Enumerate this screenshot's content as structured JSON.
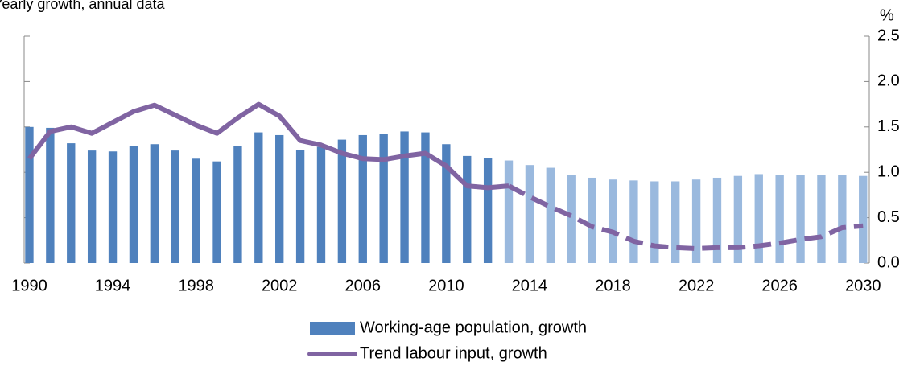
{
  "chart_data": {
    "type": "bar_line",
    "subtitle": "Yearly growth, annual data",
    "y_unit": "%",
    "x": [
      1990,
      1991,
      1992,
      1993,
      1994,
      1995,
      1996,
      1997,
      1998,
      1999,
      2000,
      2001,
      2002,
      2003,
      2004,
      2005,
      2006,
      2007,
      2008,
      2009,
      2010,
      2011,
      2012,
      2013,
      2014,
      2015,
      2016,
      2017,
      2018,
      2019,
      2020,
      2021,
      2022,
      2023,
      2024,
      2025,
      2026,
      2027,
      2028,
      2029,
      2030
    ],
    "xlim": [
      1989.75,
      2030.3
    ],
    "xticks": [
      1990,
      1994,
      1998,
      2002,
      2006,
      2010,
      2014,
      2018,
      2022,
      2026,
      2030
    ],
    "ylim": [
      0,
      2.5
    ],
    "yticks": [
      {
        "value": 0,
        "label": "0.0"
      },
      0.5,
      {
        "value": 1,
        "label": "1.0"
      },
      1.5,
      {
        "value": 2,
        "label": "2.0"
      },
      2.5
    ],
    "projection_start": 2013,
    "series": [
      {
        "name": "Working-age population, growth",
        "kind": "bar",
        "color": "#4f81bd",
        "projection_color": "#9ab9de",
        "values": [
          1.5,
          1.49,
          1.32,
          1.24,
          1.23,
          1.29,
          1.31,
          1.24,
          1.15,
          1.12,
          1.29,
          1.44,
          1.41,
          1.25,
          1.28,
          1.36,
          1.41,
          1.42,
          1.45,
          1.44,
          1.31,
          1.18,
          1.16,
          1.13,
          1.08,
          1.05,
          0.97,
          0.94,
          0.92,
          0.91,
          0.9,
          0.9,
          0.92,
          0.94,
          0.96,
          0.98,
          0.97,
          0.97,
          0.97,
          0.97,
          0.96
        ]
      },
      {
        "name": "Trend labour input, growth",
        "kind": "line",
        "color": "#8064a2",
        "values": [
          1.15,
          1.45,
          1.5,
          1.43,
          1.55,
          1.67,
          1.74,
          1.63,
          1.52,
          1.43,
          1.6,
          1.75,
          1.62,
          1.35,
          1.3,
          1.21,
          1.15,
          1.14,
          1.18,
          1.21,
          1.07,
          0.85,
          0.83,
          0.85,
          0.73,
          0.62,
          0.52,
          0.4,
          0.34,
          0.24,
          0.19,
          0.17,
          0.16,
          0.17,
          0.17,
          0.19,
          0.22,
          0.26,
          0.29,
          0.39,
          0.41
        ]
      }
    ]
  }
}
